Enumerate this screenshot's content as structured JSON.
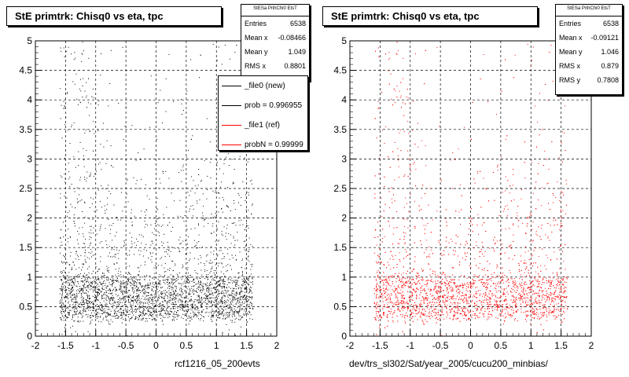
{
  "charts": [
    {
      "title": "StE primtrk: Chisq0 vs eta, tpc",
      "xlabel": "rcf1216_05_200evts",
      "stats_header": "StESa PrihChi0 EtsT",
      "stats": [
        {
          "label": "Entries",
          "value": "6538"
        },
        {
          "label": "Mean x",
          "value": "-0.08466"
        },
        {
          "label": "Mean y",
          "value": "1.049"
        },
        {
          "label": "RMS x",
          "value": "0.8801"
        }
      ],
      "legend": [
        {
          "label": "_file0 (new)",
          "color": "#000000"
        },
        {
          "label": "prob = 0.996955",
          "color": "#000000"
        },
        {
          "label": "_file1 (ref)",
          "color": "#ff0000"
        },
        {
          "label": "probN = 0.99999",
          "color": "#ff0000"
        }
      ],
      "marker_color": "#000000"
    },
    {
      "title": "StE primtrk: Chisq0 vs eta, tpc",
      "xlabel": "dev/trs_sl302/Sat/year_2005/cucu200_minbias/",
      "stats_header": "StESa PrihChi0 EtsT",
      "stats": [
        {
          "label": "Entries",
          "value": "6538"
        },
        {
          "label": "Mean x",
          "value": "-0.09121"
        },
        {
          "label": "Mean y",
          "value": "1.046"
        },
        {
          "label": "RMS x",
          "value": "0.879"
        },
        {
          "label": "RMS y",
          "value": "0.7808"
        }
      ],
      "marker_color": "#ff0000"
    }
  ],
  "chart_data": [
    {
      "type": "scatter",
      "title": "StE primtrk: Chisq0 vs eta, tpc",
      "xlabel": "rcf1216_05_200evts",
      "ylabel": "",
      "xlim": [
        -2,
        2
      ],
      "ylim": [
        0,
        5
      ],
      "xticks": [
        "-2",
        "-1.5",
        "-1",
        "-0.5",
        "0",
        "0.5",
        "1",
        "1.5",
        "2"
      ],
      "yticks": [
        "0",
        "0.5",
        "1",
        "1.5",
        "2",
        "2.5",
        "3",
        "3.5",
        "4",
        "4.5",
        "5"
      ],
      "grid": true,
      "entries": 6538,
      "mean_x": -0.08466,
      "mean_y": 1.049,
      "rms_x": 0.8801,
      "eta_range": [
        -1.6,
        1.6
      ],
      "dense_band_y": [
        0.3,
        1.0
      ],
      "color": "#000000"
    },
    {
      "type": "scatter",
      "title": "StE primtrk: Chisq0 vs eta, tpc",
      "xlabel": "dev/trs_sl302/Sat/year_2005/cucu200_minbias/",
      "ylabel": "",
      "xlim": [
        -2,
        2
      ],
      "ylim": [
        0,
        5
      ],
      "xticks": [
        "-2",
        "-1.5",
        "-1",
        "-0.5",
        "0",
        "0.5",
        "1",
        "1.5",
        "2"
      ],
      "yticks": [
        "0",
        "0.5",
        "1",
        "1.5",
        "2",
        "2.5",
        "3",
        "3.5",
        "4",
        "4.5",
        "5"
      ],
      "grid": true,
      "entries": 6538,
      "mean_x": -0.09121,
      "mean_y": 1.046,
      "rms_x": 0.879,
      "rms_y": 0.7808,
      "eta_range": [
        -1.6,
        1.6
      ],
      "dense_band_y": [
        0.3,
        1.0
      ],
      "color": "#ff0000"
    }
  ]
}
